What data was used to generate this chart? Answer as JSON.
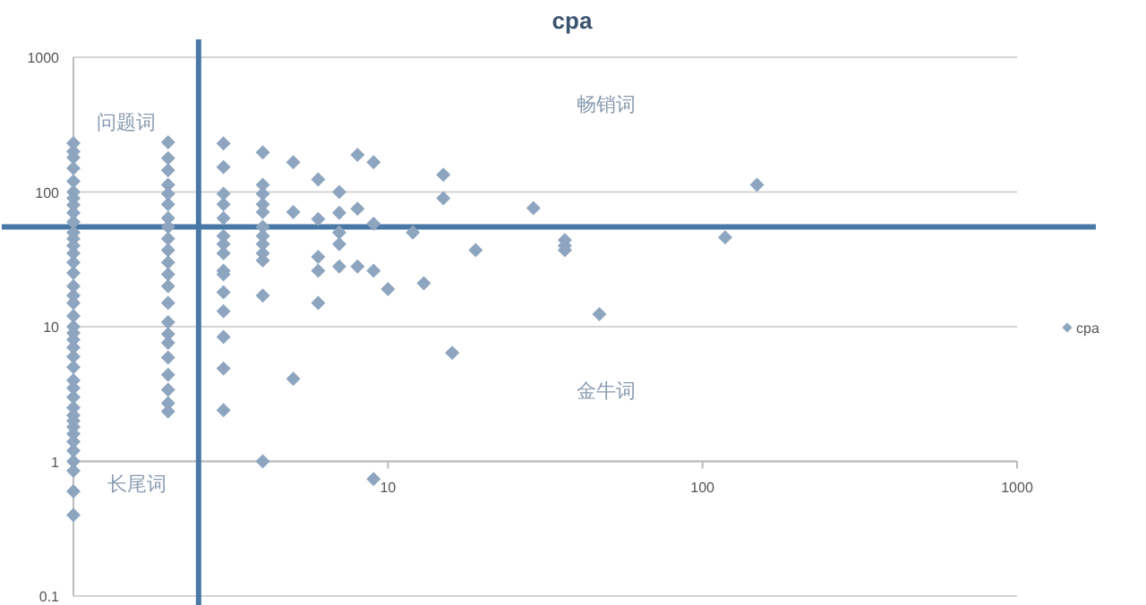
{
  "chart_data": {
    "type": "scatter",
    "title": "cpa",
    "log": "xy",
    "xlim": [
      1,
      1000
    ],
    "ylim": [
      0.1,
      1000
    ],
    "xticks": [
      {
        "value": 1,
        "label": null
      },
      10,
      100,
      1000
    ],
    "yticks": [
      0.1,
      1,
      10,
      100,
      1000
    ],
    "grid": "y",
    "legend": "right",
    "marker": "diamond",
    "series": [
      {
        "name": "cpa",
        "color": "#8ea5c0",
        "x": [
          1,
          1,
          1,
          1,
          1,
          1,
          1,
          1,
          1,
          1,
          1,
          1,
          1,
          1,
          1,
          1,
          1,
          1,
          1,
          1,
          1,
          1,
          1,
          1,
          1,
          1,
          1,
          1,
          1,
          1,
          1,
          1,
          1,
          1,
          1,
          1,
          1,
          1,
          1,
          1,
          2,
          2,
          2,
          2,
          2,
          2,
          2,
          2,
          2,
          2,
          2,
          2,
          2,
          2,
          2,
          2,
          2,
          2,
          2,
          2,
          2,
          2,
          3,
          3,
          3,
          3,
          3,
          3,
          3,
          3,
          3,
          3,
          3,
          3,
          3,
          3,
          3,
          4,
          4,
          4,
          4,
          4,
          4,
          4,
          4,
          4,
          4,
          4,
          4,
          5,
          5,
          5,
          6,
          6,
          6,
          6,
          6,
          7,
          7,
          7,
          7,
          7,
          8,
          8,
          8,
          9,
          9,
          9,
          9,
          10,
          12,
          13,
          15,
          15,
          16,
          19,
          29,
          36.5,
          36.5,
          36.5,
          47,
          118,
          149
        ],
        "values": [
          230,
          200,
          180,
          150,
          120,
          100,
          90,
          80,
          70,
          60,
          50,
          45,
          40,
          35,
          30,
          25,
          20,
          17,
          15,
          12,
          10,
          9,
          8,
          7,
          6,
          5,
          4,
          3.5,
          3,
          2.5,
          2.2,
          2,
          1.8,
          1.6,
          1.4,
          1.2,
          1,
          0.85,
          0.6,
          0.4,
          234,
          178,
          145,
          113,
          97,
          81,
          64,
          55,
          45,
          37,
          30,
          24.5,
          20,
          15,
          10.8,
          8.8,
          7.6,
          5.9,
          4.4,
          3.4,
          2.7,
          2.35,
          229,
          153,
          97,
          81,
          64,
          47,
          41,
          35,
          26,
          24.5,
          18,
          13,
          8.4,
          4.9,
          2.4,
          197,
          113,
          97,
          81,
          71,
          55,
          47,
          41,
          35,
          31,
          17,
          1,
          166,
          71,
          4.1,
          124,
          63,
          33,
          26,
          15,
          100,
          70,
          50,
          41,
          28,
          189,
          75,
          28,
          166,
          58,
          26,
          0.74,
          19,
          50,
          21,
          134,
          90,
          6.4,
          37,
          76,
          44,
          40,
          37,
          12.4,
          46,
          113
        ]
      }
    ],
    "ref_lines": [
      {
        "axis": "x",
        "value": 2.5,
        "color": "#4a78a6"
      },
      {
        "axis": "y",
        "value": 55,
        "color": "#4a78a6"
      }
    ],
    "annotations": [
      "问题词",
      "畅销词",
      "金牛词",
      "长尾词"
    ]
  }
}
